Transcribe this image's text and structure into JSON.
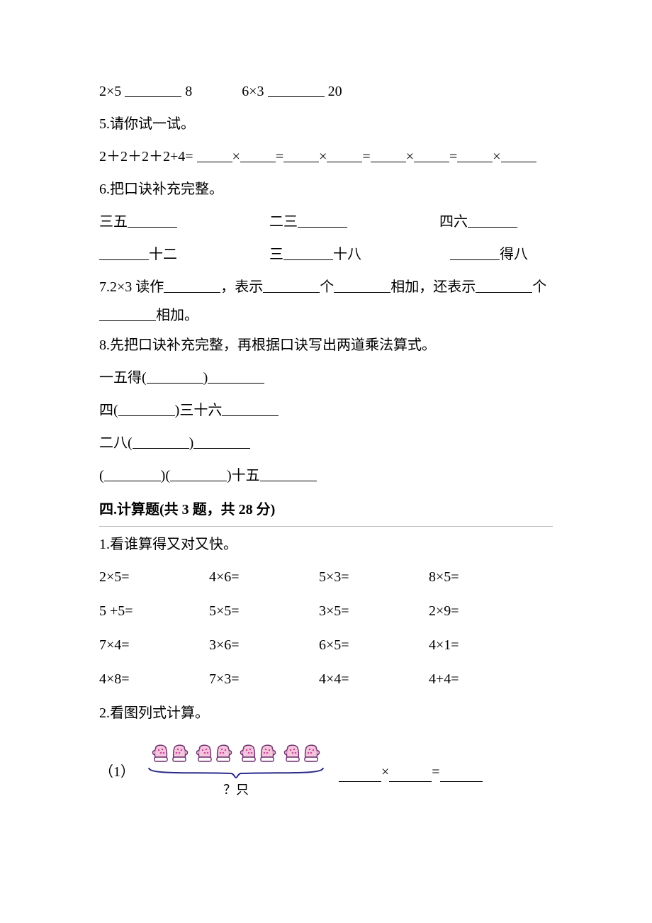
{
  "q_compare": {
    "left": {
      "expr": "2×5",
      "target": "8"
    },
    "right": {
      "expr": "6×3",
      "target": "20"
    }
  },
  "q5": {
    "title": "5.请你试一试。",
    "lhs": "2＋2＋2＋2+4="
  },
  "q6": {
    "title": "6.把口诀补充完整。",
    "row1": {
      "a": "三五",
      "b": "二三",
      "c": "四六"
    },
    "row2": {
      "a_post": "十二",
      "b_pre": "三",
      "b_post": "十八",
      "c_post": "得八"
    }
  },
  "q7": {
    "pre": "7.2×3 读作",
    "mid1": "，表示",
    "mid2": "个",
    "mid3": "相加，还表示",
    "mid4": "个",
    "line2_post": "相加。"
  },
  "q8": {
    "title": "8.先把口诀补充完整，再根据口诀写出两道乘法算式。",
    "l1_pre": "一五得(",
    "l2_pre": "四(",
    "l2_post": ")三十六",
    "l3_pre": "二八(",
    "l4": {
      "open1": "(",
      "close1": ")(",
      "close2": ")十五"
    }
  },
  "section4": {
    "heading": "四.计算题(共 3 题，共 28 分)"
  },
  "calc1": {
    "title": "1.看谁算得又对又快。",
    "rows": [
      [
        "2×5=",
        "4×6=",
        "5×3=",
        "8×5="
      ],
      [
        "5 +5=",
        "5×5=",
        "3×5=",
        "2×9="
      ],
      [
        "7×4=",
        "3×6=",
        "6×5=",
        "4×1="
      ],
      [
        "4×8=",
        "7×3=",
        "4×4=",
        "4+4="
      ]
    ]
  },
  "calc2": {
    "title": "2.看图列式计算。",
    "item1": {
      "index": "（1）",
      "brace_label": "？只",
      "op": "×",
      "eq": "="
    }
  },
  "mitten": {
    "fill": "#f4c6dd",
    "stroke": "#6b2a6b",
    "cuff": "#ffffff",
    "dot": "#d24aa0"
  },
  "brace_color": "#2a2a8a"
}
